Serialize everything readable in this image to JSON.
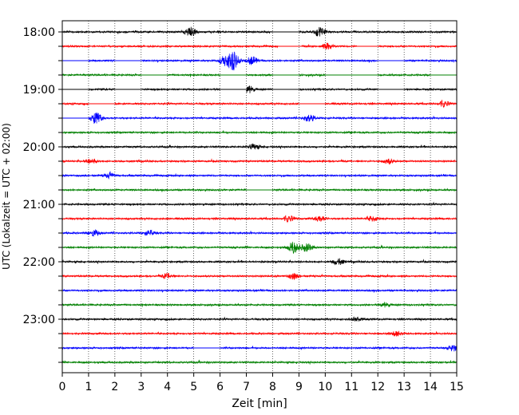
{
  "chart_data": {
    "type": "line",
    "title": "",
    "xlabel": "Zeit  [min]",
    "ylabel": "UTC (Lokalzeit = UTC + 02:00)",
    "xlim": [
      0,
      15
    ],
    "x_ticks": [
      0,
      1,
      2,
      3,
      4,
      5,
      6,
      7,
      8,
      9,
      10,
      11,
      12,
      13,
      14,
      15
    ],
    "y_tick_labels": [
      "18:00",
      "19:00",
      "20:00",
      "21:00",
      "22:00",
      "23:00"
    ],
    "grid": "vertical dotted at each minute",
    "legend": "none",
    "trace_interval_min": 15,
    "trace_color_cycle": [
      "#000000",
      "#ff0000",
      "#0000ff",
      "#008000"
    ],
    "traces": [
      {
        "start": "18:00",
        "color": "#000000",
        "gaps": [
          [
            8.0,
            9.0
          ]
        ],
        "events": [
          [
            4.9,
            10
          ],
          [
            9.8,
            9
          ]
        ]
      },
      {
        "start": "18:15",
        "color": "#ff0000",
        "gaps": [
          [
            8.2,
            9.1
          ],
          [
            11.2,
            12.0
          ]
        ],
        "events": [
          [
            10.1,
            6
          ]
        ]
      },
      {
        "start": "18:30",
        "color": "#0000ff",
        "gaps": [
          [
            0.0,
            1.0
          ],
          [
            2.0,
            3.0
          ],
          [
            12.0,
            13.0
          ]
        ],
        "events": [
          [
            6.5,
            18
          ],
          [
            6.2,
            10
          ],
          [
            7.2,
            8
          ]
        ]
      },
      {
        "start": "18:45",
        "color": "#008000",
        "gaps": [
          [
            3.0,
            4.0
          ],
          [
            6.0,
            7.0
          ],
          [
            8.0,
            9.0
          ],
          [
            10.0,
            12.0
          ],
          [
            14.0,
            15.0
          ]
        ],
        "events": []
      },
      {
        "start": "19:00",
        "color": "#000000",
        "gaps": [
          [
            0.0,
            1.0
          ],
          [
            2.0,
            3.0
          ],
          [
            6.0,
            7.0
          ],
          [
            8.0,
            9.0
          ],
          [
            12.0,
            13.0
          ]
        ],
        "events": [
          [
            7.1,
            7
          ]
        ]
      },
      {
        "start": "19:15",
        "color": "#ff0000",
        "gaps": [
          [
            1.0,
            2.0
          ],
          [
            9.0,
            10.0
          ]
        ],
        "events": [
          [
            14.5,
            6
          ]
        ]
      },
      {
        "start": "19:30",
        "color": "#0000ff",
        "gaps": [
          [
            0.0,
            1.0
          ]
        ],
        "events": [
          [
            1.3,
            12
          ],
          [
            9.4,
            7
          ]
        ]
      },
      {
        "start": "19:45",
        "color": "#008000",
        "gaps": [],
        "events": []
      },
      {
        "start": "20:00",
        "color": "#000000",
        "gaps": [],
        "events": [
          [
            7.3,
            5
          ]
        ]
      },
      {
        "start": "20:15",
        "color": "#ff0000",
        "gaps": [],
        "events": [
          [
            1.1,
            5
          ],
          [
            12.4,
            5
          ]
        ]
      },
      {
        "start": "20:30",
        "color": "#0000ff",
        "gaps": [],
        "events": [
          [
            1.8,
            5
          ]
        ]
      },
      {
        "start": "20:45",
        "color": "#008000",
        "gaps": [
          [
            7.0,
            8.0
          ]
        ],
        "events": []
      },
      {
        "start": "21:00",
        "color": "#000000",
        "gaps": [],
        "events": []
      },
      {
        "start": "21:15",
        "color": "#ff0000",
        "gaps": [],
        "events": [
          [
            8.6,
            6
          ],
          [
            9.8,
            6
          ],
          [
            11.8,
            5
          ]
        ]
      },
      {
        "start": "21:30",
        "color": "#0000ff",
        "gaps": [],
        "events": [
          [
            1.2,
            6
          ],
          [
            3.3,
            5
          ]
        ]
      },
      {
        "start": "21:45",
        "color": "#008000",
        "gaps": [],
        "events": [
          [
            8.8,
            12
          ],
          [
            9.3,
            8
          ]
        ]
      },
      {
        "start": "22:00",
        "color": "#000000",
        "gaps": [],
        "events": [
          [
            10.5,
            6
          ]
        ]
      },
      {
        "start": "22:15",
        "color": "#ff0000",
        "gaps": [],
        "events": [
          [
            8.8,
            6
          ],
          [
            4.0,
            5
          ]
        ]
      },
      {
        "start": "22:30",
        "color": "#0000ff",
        "gaps": [],
        "events": []
      },
      {
        "start": "22:45",
        "color": "#008000",
        "gaps": [],
        "events": [
          [
            12.3,
            4
          ]
        ]
      },
      {
        "start": "23:00",
        "color": "#000000",
        "gaps": [],
        "events": [
          [
            11.2,
            4
          ]
        ]
      },
      {
        "start": "23:15",
        "color": "#ff0000",
        "gaps": [],
        "events": [
          [
            12.7,
            5
          ]
        ]
      },
      {
        "start": "23:30",
        "color": "#0000ff",
        "gaps": [
          [
            5.0,
            6.0
          ]
        ],
        "events": [
          [
            14.9,
            6
          ]
        ]
      },
      {
        "start": "23:45",
        "color": "#008000",
        "gaps": [],
        "events": []
      }
    ]
  }
}
